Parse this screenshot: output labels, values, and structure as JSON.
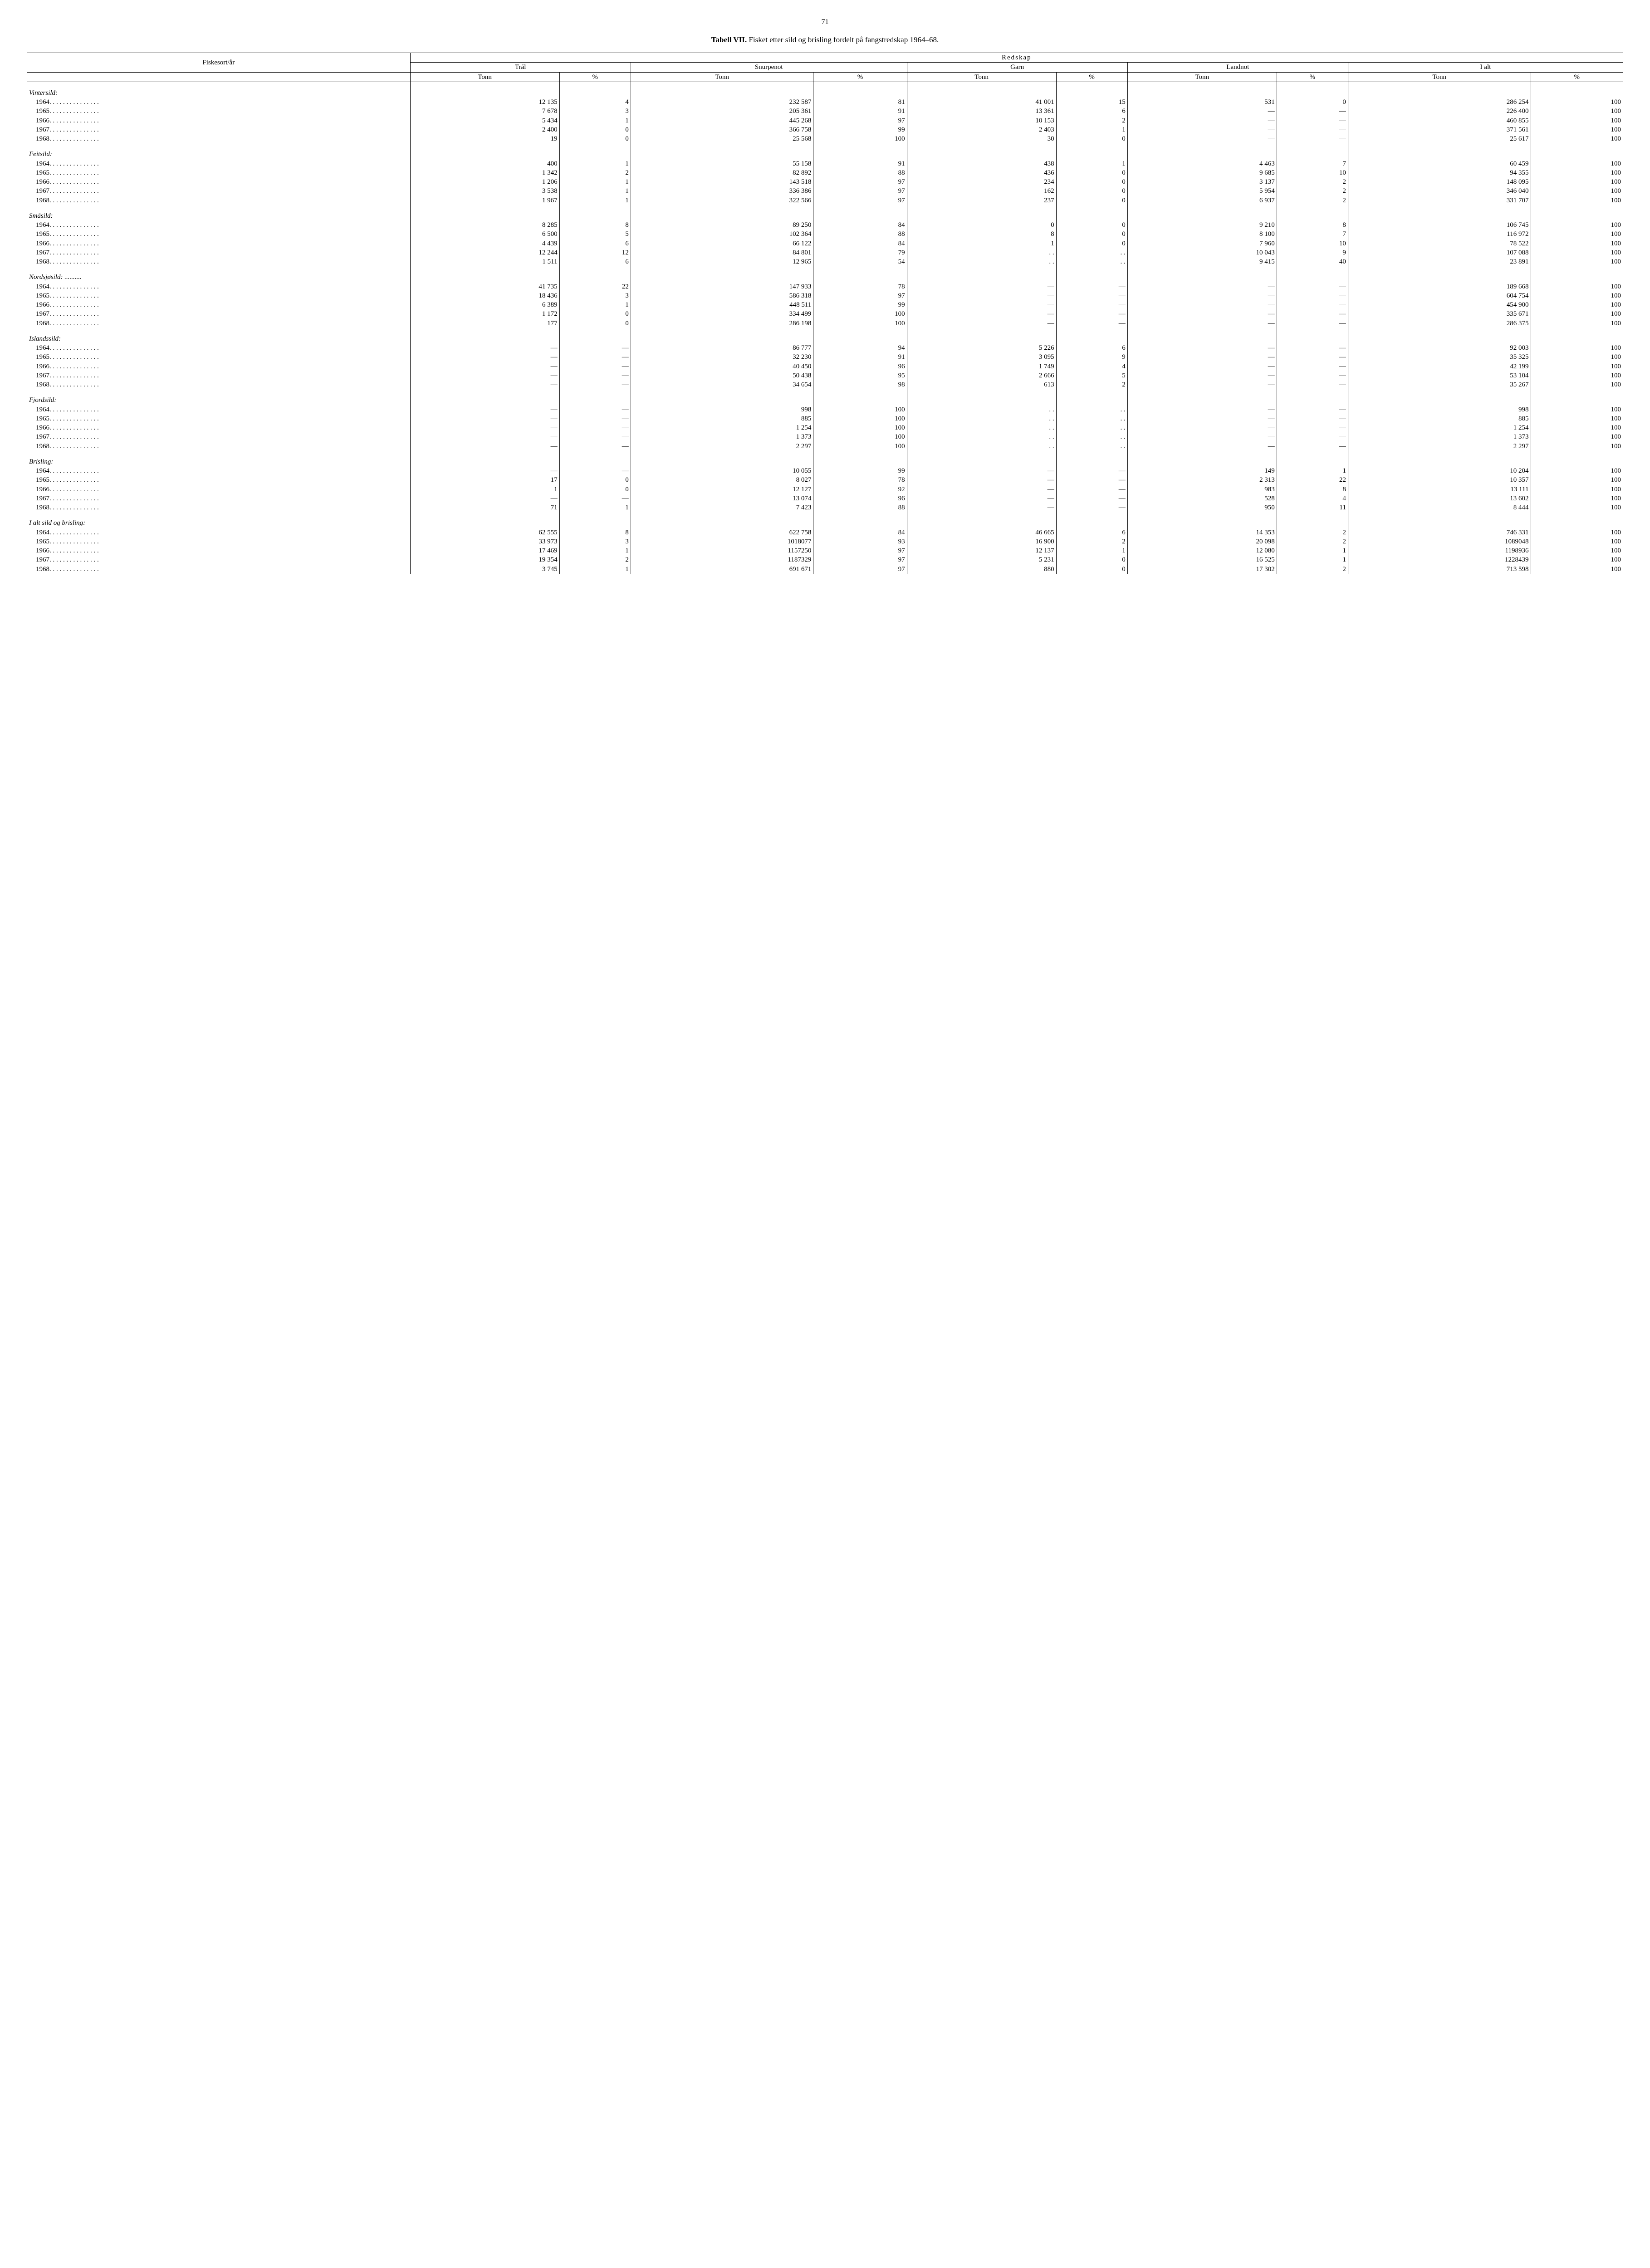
{
  "page_number": "71",
  "title_prefix": "Tabell VII.",
  "title_rest": "Fisket etter sild og brisling fordelt på fangstredskap 1964–68.",
  "headers": {
    "fiskesort": "Fiskesort/år",
    "redskap": "Redskap",
    "tral": "Trål",
    "snurpenot": "Snurpenot",
    "garn": "Garn",
    "landnot": "Landnot",
    "ialt": "I alt",
    "tonn": "Tonn",
    "pct": "%"
  },
  "groups": [
    {
      "name": "Vintersild:",
      "rows": [
        {
          "y": "1964",
          "c": [
            "12 135",
            "4",
            "232 587",
            "81",
            "41 001",
            "15",
            "531",
            "0",
            "286 254",
            "100"
          ]
        },
        {
          "y": "1965",
          "c": [
            "7 678",
            "3",
            "205 361",
            "91",
            "13 361",
            "6",
            "—",
            "—",
            "226 400",
            "100"
          ]
        },
        {
          "y": "1966",
          "c": [
            "5 434",
            "1",
            "445 268",
            "97",
            "10 153",
            "2",
            "—",
            "—",
            "460 855",
            "100"
          ]
        },
        {
          "y": "1967",
          "c": [
            "2 400",
            "0",
            "366 758",
            "99",
            "2 403",
            "1",
            "—",
            "—",
            "371 561",
            "100"
          ]
        },
        {
          "y": "1968",
          "c": [
            "19",
            "0",
            "25 568",
            "100",
            "30",
            "0",
            "—",
            "—",
            "25 617",
            "100"
          ]
        }
      ]
    },
    {
      "name": "Feitsild:",
      "rows": [
        {
          "y": "1964",
          "c": [
            "400",
            "1",
            "55 158",
            "91",
            "438",
            "1",
            "4 463",
            "7",
            "60 459",
            "100"
          ]
        },
        {
          "y": "1965",
          "c": [
            "1 342",
            "2",
            "82 892",
            "88",
            "436",
            "0",
            "9 685",
            "10",
            "94 355",
            "100"
          ]
        },
        {
          "y": "1966",
          "c": [
            "1 206",
            "1",
            "143 518",
            "97",
            "234",
            "0",
            "3 137",
            "2",
            "148 095",
            "100"
          ]
        },
        {
          "y": "1967",
          "c": [
            "3 538",
            "1",
            "336 386",
            "97",
            "162",
            "0",
            "5 954",
            "2",
            "346 040",
            "100"
          ]
        },
        {
          "y": "1968",
          "c": [
            "1 967",
            "1",
            "322 566",
            "97",
            "237",
            "0",
            "6 937",
            "2",
            "331 707",
            "100"
          ]
        }
      ]
    },
    {
      "name": "Småsild:",
      "rows": [
        {
          "y": "1964",
          "c": [
            "8 285",
            "8",
            "89 250",
            "84",
            "0",
            "0",
            "9 210",
            "8",
            "106 745",
            "100"
          ]
        },
        {
          "y": "1965",
          "c": [
            "6 500",
            "5",
            "102 364",
            "88",
            "8",
            "0",
            "8 100",
            "7",
            "116 972",
            "100"
          ]
        },
        {
          "y": "1966",
          "c": [
            "4 439",
            "6",
            "66 122",
            "84",
            "1",
            "0",
            "7 960",
            "10",
            "78 522",
            "100"
          ]
        },
        {
          "y": "1967",
          "c": [
            "12 244",
            "12",
            "84 801",
            "79",
            ". .",
            ". .",
            "10 043",
            "9",
            "107 088",
            "100"
          ]
        },
        {
          "y": "1968",
          "c": [
            "1 511",
            "6",
            "12 965",
            "54",
            ". .",
            ". .",
            "9 415",
            "40",
            "23 891",
            "100"
          ]
        }
      ]
    },
    {
      "name": "Nordsjøsild: ..........",
      "rows": [
        {
          "y": "1964",
          "c": [
            "41 735",
            "22",
            "147 933",
            "78",
            "—",
            "—",
            "—",
            "—",
            "189 668",
            "100"
          ]
        },
        {
          "y": "1965",
          "c": [
            "18 436",
            "3",
            "586 318",
            "97",
            "—",
            "—",
            "—",
            "—",
            "604 754",
            "100"
          ]
        },
        {
          "y": "1966",
          "c": [
            "6 389",
            "1",
            "448 511",
            "99",
            "—",
            "—",
            "—",
            "—",
            "454 900",
            "100"
          ]
        },
        {
          "y": "1967",
          "c": [
            "1 172",
            "0",
            "334 499",
            "100",
            "—",
            "—",
            "—",
            "—",
            "335 671",
            "100"
          ]
        },
        {
          "y": "1968",
          "c": [
            "177",
            "0",
            "286 198",
            "100",
            "—",
            "—",
            "—",
            "—",
            "286 375",
            "100"
          ]
        }
      ]
    },
    {
      "name": "Islandssild:",
      "rows": [
        {
          "y": "1964",
          "c": [
            "—",
            "—",
            "86 777",
            "94",
            "5 226",
            "6",
            "—",
            "—",
            "92 003",
            "100"
          ]
        },
        {
          "y": "1965",
          "c": [
            "—",
            "—",
            "32 230",
            "91",
            "3 095",
            "9",
            "—",
            "—",
            "35 325",
            "100"
          ]
        },
        {
          "y": "1966",
          "c": [
            "—",
            "—",
            "40 450",
            "96",
            "1 749",
            "4",
            "—",
            "—",
            "42 199",
            "100"
          ]
        },
        {
          "y": "1967",
          "c": [
            "—",
            "—",
            "50 438",
            "95",
            "2 666",
            "5",
            "—",
            "—",
            "53 104",
            "100"
          ]
        },
        {
          "y": "1968",
          "c": [
            "—",
            "—",
            "34 654",
            "98",
            "613",
            "2",
            "—",
            "—",
            "35 267",
            "100"
          ]
        }
      ]
    },
    {
      "name": "Fjordsild:",
      "rows": [
        {
          "y": "1964",
          "c": [
            "—",
            "—",
            "998",
            "100",
            ". .",
            ". .",
            "—",
            "—",
            "998",
            "100"
          ]
        },
        {
          "y": "1965",
          "c": [
            "—",
            "—",
            "885",
            "100",
            ". .",
            ". .",
            "—",
            "—",
            "885",
            "100"
          ]
        },
        {
          "y": "1966",
          "c": [
            "—",
            "—",
            "1 254",
            "100",
            ". .",
            ". .",
            "—",
            "—",
            "1 254",
            "100"
          ]
        },
        {
          "y": "1967",
          "c": [
            "—",
            "—",
            "1 373",
            "100",
            ". .",
            ". .",
            "—",
            "—",
            "1 373",
            "100"
          ]
        },
        {
          "y": "1968",
          "c": [
            "—",
            "—",
            "2 297",
            "100",
            ". .",
            ". .",
            "—",
            "—",
            "2 297",
            "100"
          ]
        }
      ]
    },
    {
      "name": "Brisling:",
      "rows": [
        {
          "y": "1964",
          "c": [
            "—",
            "—",
            "10 055",
            "99",
            "—",
            "—",
            "149",
            "1",
            "10 204",
            "100"
          ]
        },
        {
          "y": "1965",
          "c": [
            "17",
            "0",
            "8 027",
            "78",
            "—",
            "—",
            "2 313",
            "22",
            "10 357",
            "100"
          ]
        },
        {
          "y": "1966",
          "c": [
            "1",
            "0",
            "12 127",
            "92",
            "—",
            "—",
            "983",
            "8",
            "13 111",
            "100"
          ]
        },
        {
          "y": "1967",
          "c": [
            "—",
            "—",
            "13 074",
            "96",
            "—",
            "—",
            "528",
            "4",
            "13 602",
            "100"
          ]
        },
        {
          "y": "1968",
          "c": [
            "71",
            "1",
            "7 423",
            "88",
            "—",
            "—",
            "950",
            "11",
            "8 444",
            "100"
          ]
        }
      ]
    },
    {
      "name": "I alt sild og brisling:",
      "rows": [
        {
          "y": "1964",
          "c": [
            "62 555",
            "8",
            "622 758",
            "84",
            "46 665",
            "6",
            "14 353",
            "2",
            "746 331",
            "100"
          ]
        },
        {
          "y": "1965",
          "c": [
            "33 973",
            "3",
            "1018077",
            "93",
            "16 900",
            "2",
            "20 098",
            "2",
            "1089048",
            "100"
          ]
        },
        {
          "y": "1966",
          "c": [
            "17 469",
            "1",
            "1157250",
            "97",
            "12 137",
            "1",
            "12 080",
            "1",
            "1198936",
            "100"
          ]
        },
        {
          "y": "1967",
          "c": [
            "19 354",
            "2",
            "1187329",
            "97",
            "5 231",
            "0",
            "16 525",
            "1",
            "1228439",
            "100"
          ]
        },
        {
          "y": "1968",
          "c": [
            "3 745",
            "1",
            "691 671",
            "97",
            "880",
            "0",
            "17 302",
            "2",
            "713 598",
            "100"
          ]
        }
      ]
    }
  ]
}
